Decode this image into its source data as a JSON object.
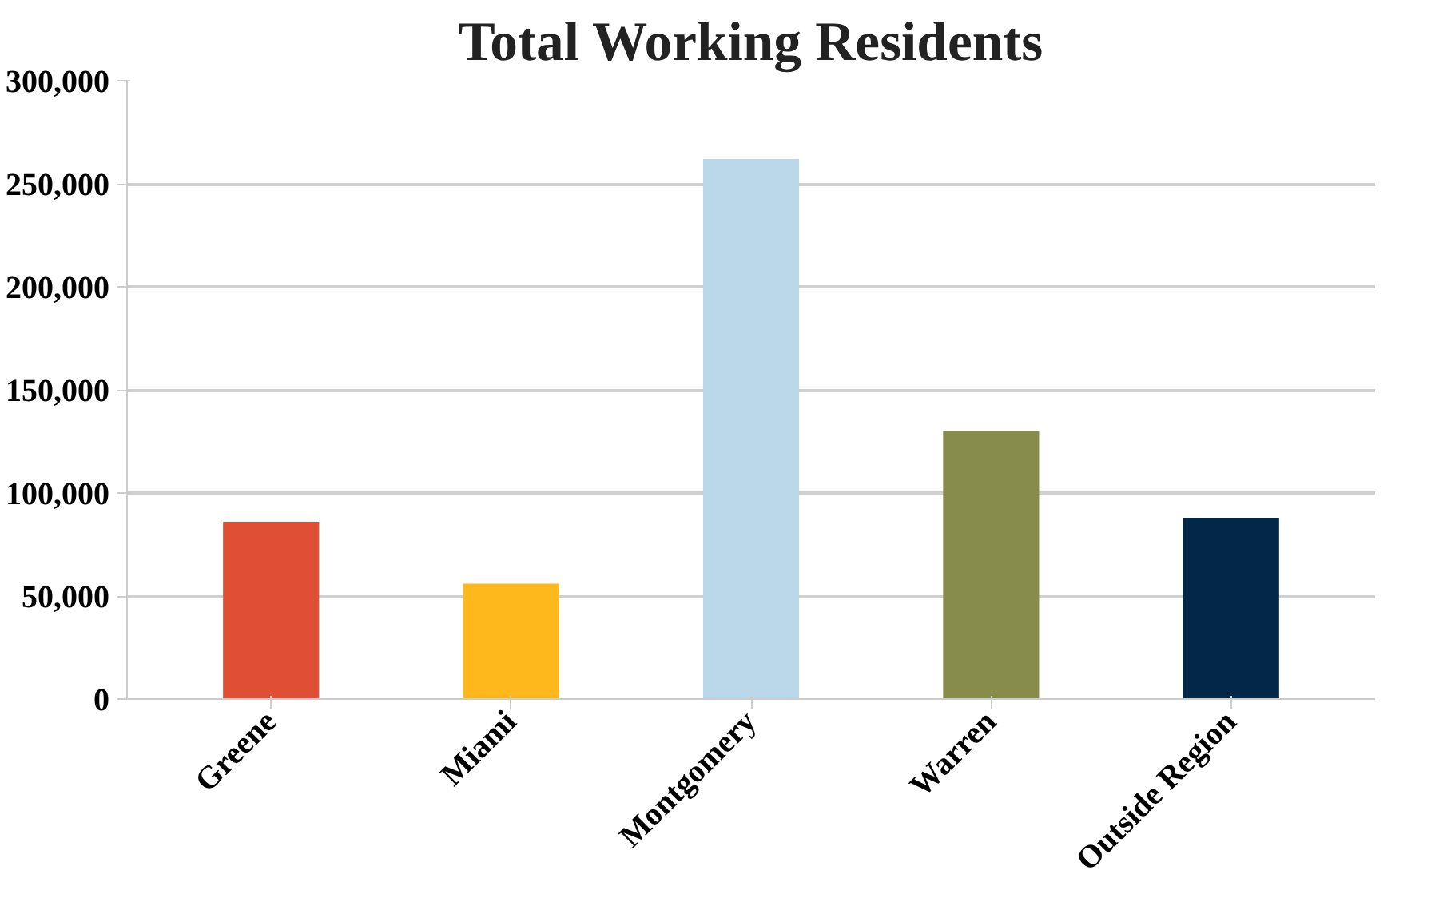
{
  "chart_data": {
    "type": "bar",
    "title": "Total Working Residents",
    "categories": [
      "Greene",
      "Miami",
      "Montgomery",
      "Warren",
      "Outside Region"
    ],
    "values": [
      86000,
      56000,
      262000,
      130000,
      88000
    ],
    "colors": [
      "#e04e36",
      "#feb81c",
      "#bad8ea",
      "#888c4a",
      "#022747"
    ],
    "ylim": [
      0,
      300000
    ],
    "yticks": [
      {
        "value": 0,
        "label": "0"
      },
      {
        "value": 50000,
        "label": "50,000"
      },
      {
        "value": 100000,
        "label": "100,000"
      },
      {
        "value": 150000,
        "label": "150,000"
      },
      {
        "value": 200000,
        "label": "200,000"
      },
      {
        "value": 250000,
        "label": "250,000"
      },
      {
        "value": 300000,
        "label": "300,000"
      }
    ],
    "grid": "y"
  }
}
